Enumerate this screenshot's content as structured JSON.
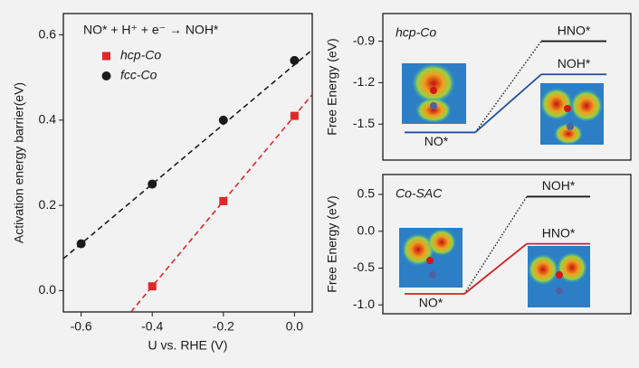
{
  "chart_data": [
    {
      "type": "scatter",
      "annotation": "NO* +  H⁺ + e⁻ → NOH*",
      "annotation_color": "#1f4e99",
      "x_label": "U vs. RHE (V)",
      "y_label": "Activation energy  barrier(eV)",
      "xlim": [
        -0.65,
        0.05
      ],
      "ylim": [
        -0.05,
        0.65
      ],
      "xticks": [
        -0.6,
        -0.4,
        -0.2,
        {
          "value": 0,
          "label": "0.0"
        }
      ],
      "yticks": [
        {
          "value": 0,
          "label": "0.0"
        },
        0.2,
        0.4,
        0.6
      ],
      "series": [
        {
          "name": "hcp-Co",
          "color": "#e02828",
          "marker": "square",
          "x": [
            -0.4,
            -0.2,
            0
          ],
          "values": [
            0.01,
            0.21,
            0.41
          ],
          "fit": {
            "x": [
              -0.46,
              0.05
            ],
            "values": [
              -0.05,
              0.46
            ]
          }
        },
        {
          "name": "fcc-Co",
          "color": "#1a1a1a",
          "marker": "circle",
          "x": [
            -0.6,
            -0.4,
            -0.2,
            0
          ],
          "values": [
            0.11,
            0.25,
            0.4,
            0.54
          ],
          "fit": {
            "x": [
              -0.65,
              0.05
            ],
            "values": [
              0.075,
              0.565
            ]
          }
        }
      ]
    },
    {
      "type": "energy-diagram",
      "title": "hcp-Co",
      "y_label": "Free Energy (eV)",
      "ylim": [
        -1.76,
        -0.7
      ],
      "yticks": [
        -0.9,
        -1.2,
        -1.5
      ],
      "initial": {
        "label": "NO*",
        "value": -1.56,
        "color": "#1f4e99"
      },
      "series": [
        {
          "name": "HNO*",
          "color": "#1a1a1a",
          "style": "dotted",
          "value": -0.9
        },
        {
          "name": "NOH*",
          "color": "#1f4e99",
          "style": "solid",
          "value": -1.14
        }
      ]
    },
    {
      "type": "energy-diagram",
      "title": "Co-SAC",
      "y_label": "Free Energy (eV)",
      "ylim": [
        -1.12,
        0.77
      ],
      "yticks": [
        0.5,
        {
          "value": 0,
          "label": "0.0"
        },
        -0.5,
        {
          "value": -1,
          "label": "-1.0"
        }
      ],
      "initial": {
        "label": "NO*",
        "value": -0.85,
        "color": "#d42020"
      },
      "series": [
        {
          "name": "NOH*",
          "color": "#1a1a1a",
          "style": "dotted",
          "value": 0.47
        },
        {
          "name": "HNO*",
          "color": "#d42020",
          "style": "solid",
          "value": -0.17
        }
      ]
    }
  ]
}
